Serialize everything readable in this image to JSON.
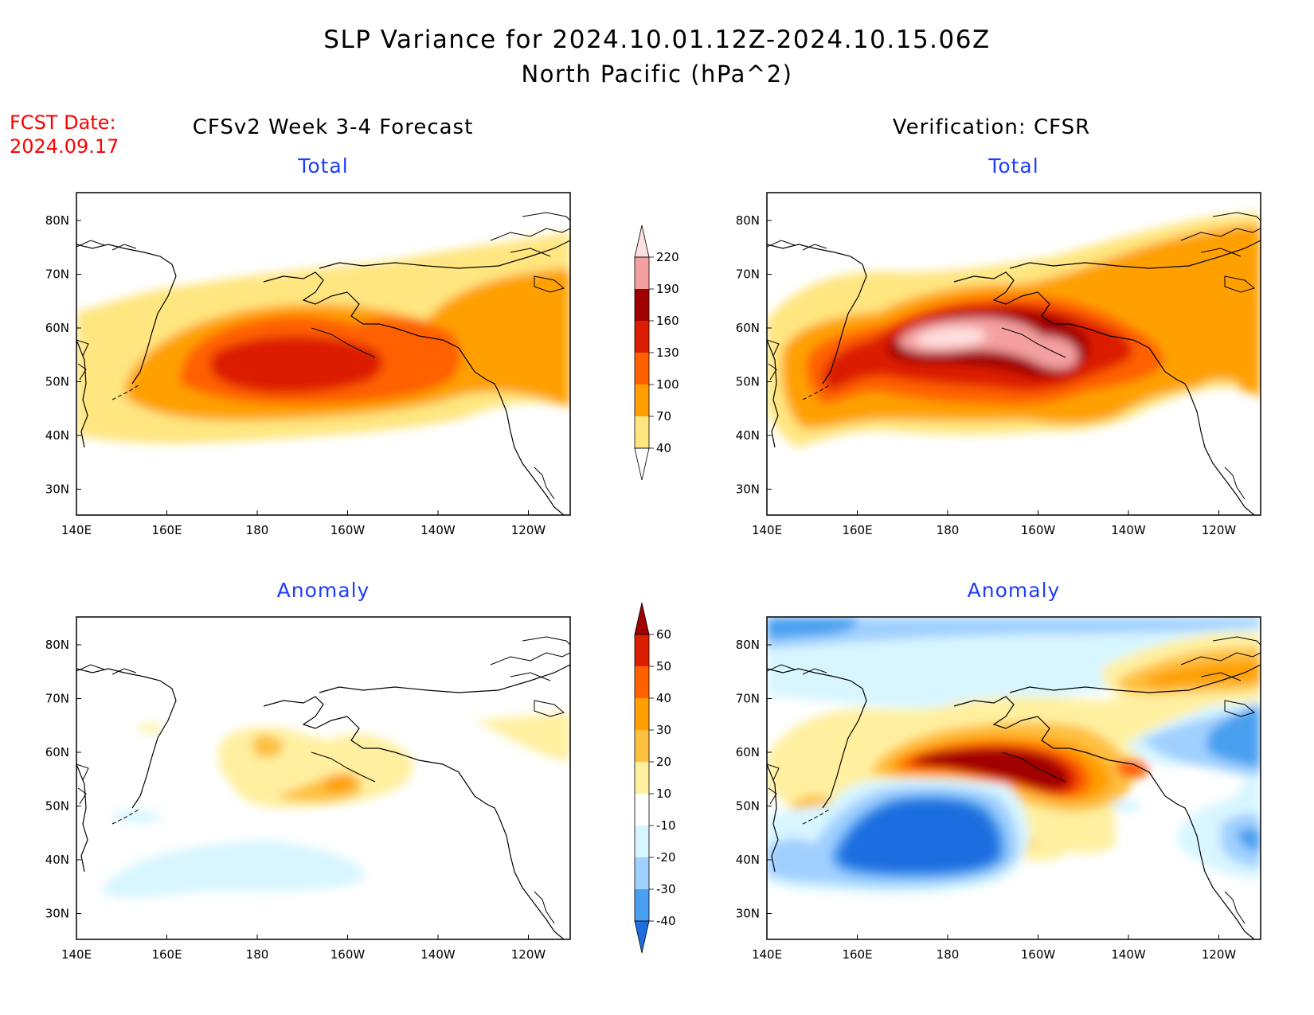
{
  "header": {
    "title_line1": "SLP Variance for 2024.10.01.12Z-2024.10.15.06Z",
    "title_line2": "North Pacific (hPa^2)",
    "fcst_label": "FCST Date:",
    "fcst_date": "2024.09.17",
    "left_title": "CFSv2 Week 3-4 Forecast",
    "right_title": "Verification: CFSR"
  },
  "panels": [
    {
      "id": "fcst-total",
      "subtitle": "Total"
    },
    {
      "id": "verif-total",
      "subtitle": "Total"
    },
    {
      "id": "fcst-anomaly",
      "subtitle": "Anomaly"
    },
    {
      "id": "verif-anomaly",
      "subtitle": "Anomaly"
    }
  ],
  "axes": {
    "lon_ticks": [
      "140E",
      "160E",
      "180",
      "160W",
      "140W",
      "120W"
    ],
    "lat_ticks": [
      "80N",
      "70N",
      "60N",
      "50N",
      "40N",
      "30N"
    ]
  },
  "colorbars": {
    "total": {
      "levels": [
        "40",
        "70",
        "100",
        "130",
        "160",
        "190",
        "220"
      ],
      "colors": [
        "#ffe680",
        "#ffa000",
        "#ff6000",
        "#dc1e00",
        "#a00000",
        "#f4a0a0",
        "#ffe0e0"
      ]
    },
    "anomaly": {
      "levels": [
        "60",
        "50",
        "40",
        "30",
        "20",
        "10",
        "-10",
        "-20",
        "-30",
        "-40"
      ],
      "colors": [
        "#a00000",
        "#dc1e00",
        "#ff6000",
        "#ffa000",
        "#ffc040",
        "#fff0a0",
        "#ffffff",
        "#d8f6ff",
        "#a0d0ff",
        "#4aa0f0",
        "#1e6ee0"
      ]
    }
  }
}
